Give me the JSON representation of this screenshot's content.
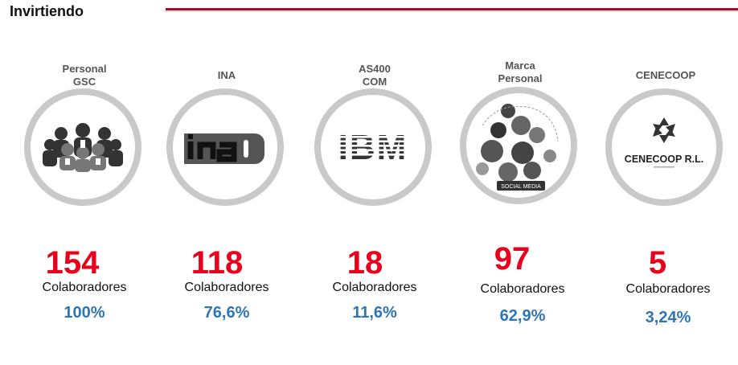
{
  "header": {
    "title": "Invirtiendo"
  },
  "colors": {
    "accent_red": "#e8001c",
    "percent_blue": "#2e75b6",
    "ring_gray": "#c9c9c9"
  },
  "items": [
    {
      "category": "Personal\nGSC",
      "icon": "people-group-icon",
      "count": "154",
      "label": "Colaboradores",
      "percent": "100%"
    },
    {
      "category": "INA",
      "icon": "ina-logo",
      "count": "118",
      "label": "Colaboradores",
      "percent": "76,6%"
    },
    {
      "category": "AS400\nCOM",
      "icon": "ibm-logo",
      "logo_text": "IBM",
      "count": "18",
      "label": "Colaboradores",
      "percent": "11,6%"
    },
    {
      "category": "Marca\nPersonal",
      "icon": "social-media-icon",
      "logo_text": "SOCIAL MEDIA",
      "count": "97",
      "label": "Colaboradores",
      "percent": "62,9%"
    },
    {
      "category": "CENECOOP",
      "icon": "cenecoop-logo",
      "logo_text": "CENECOOP R.L.",
      "count": "5",
      "label": "Colaboradores",
      "percent": "3,24%"
    }
  ]
}
